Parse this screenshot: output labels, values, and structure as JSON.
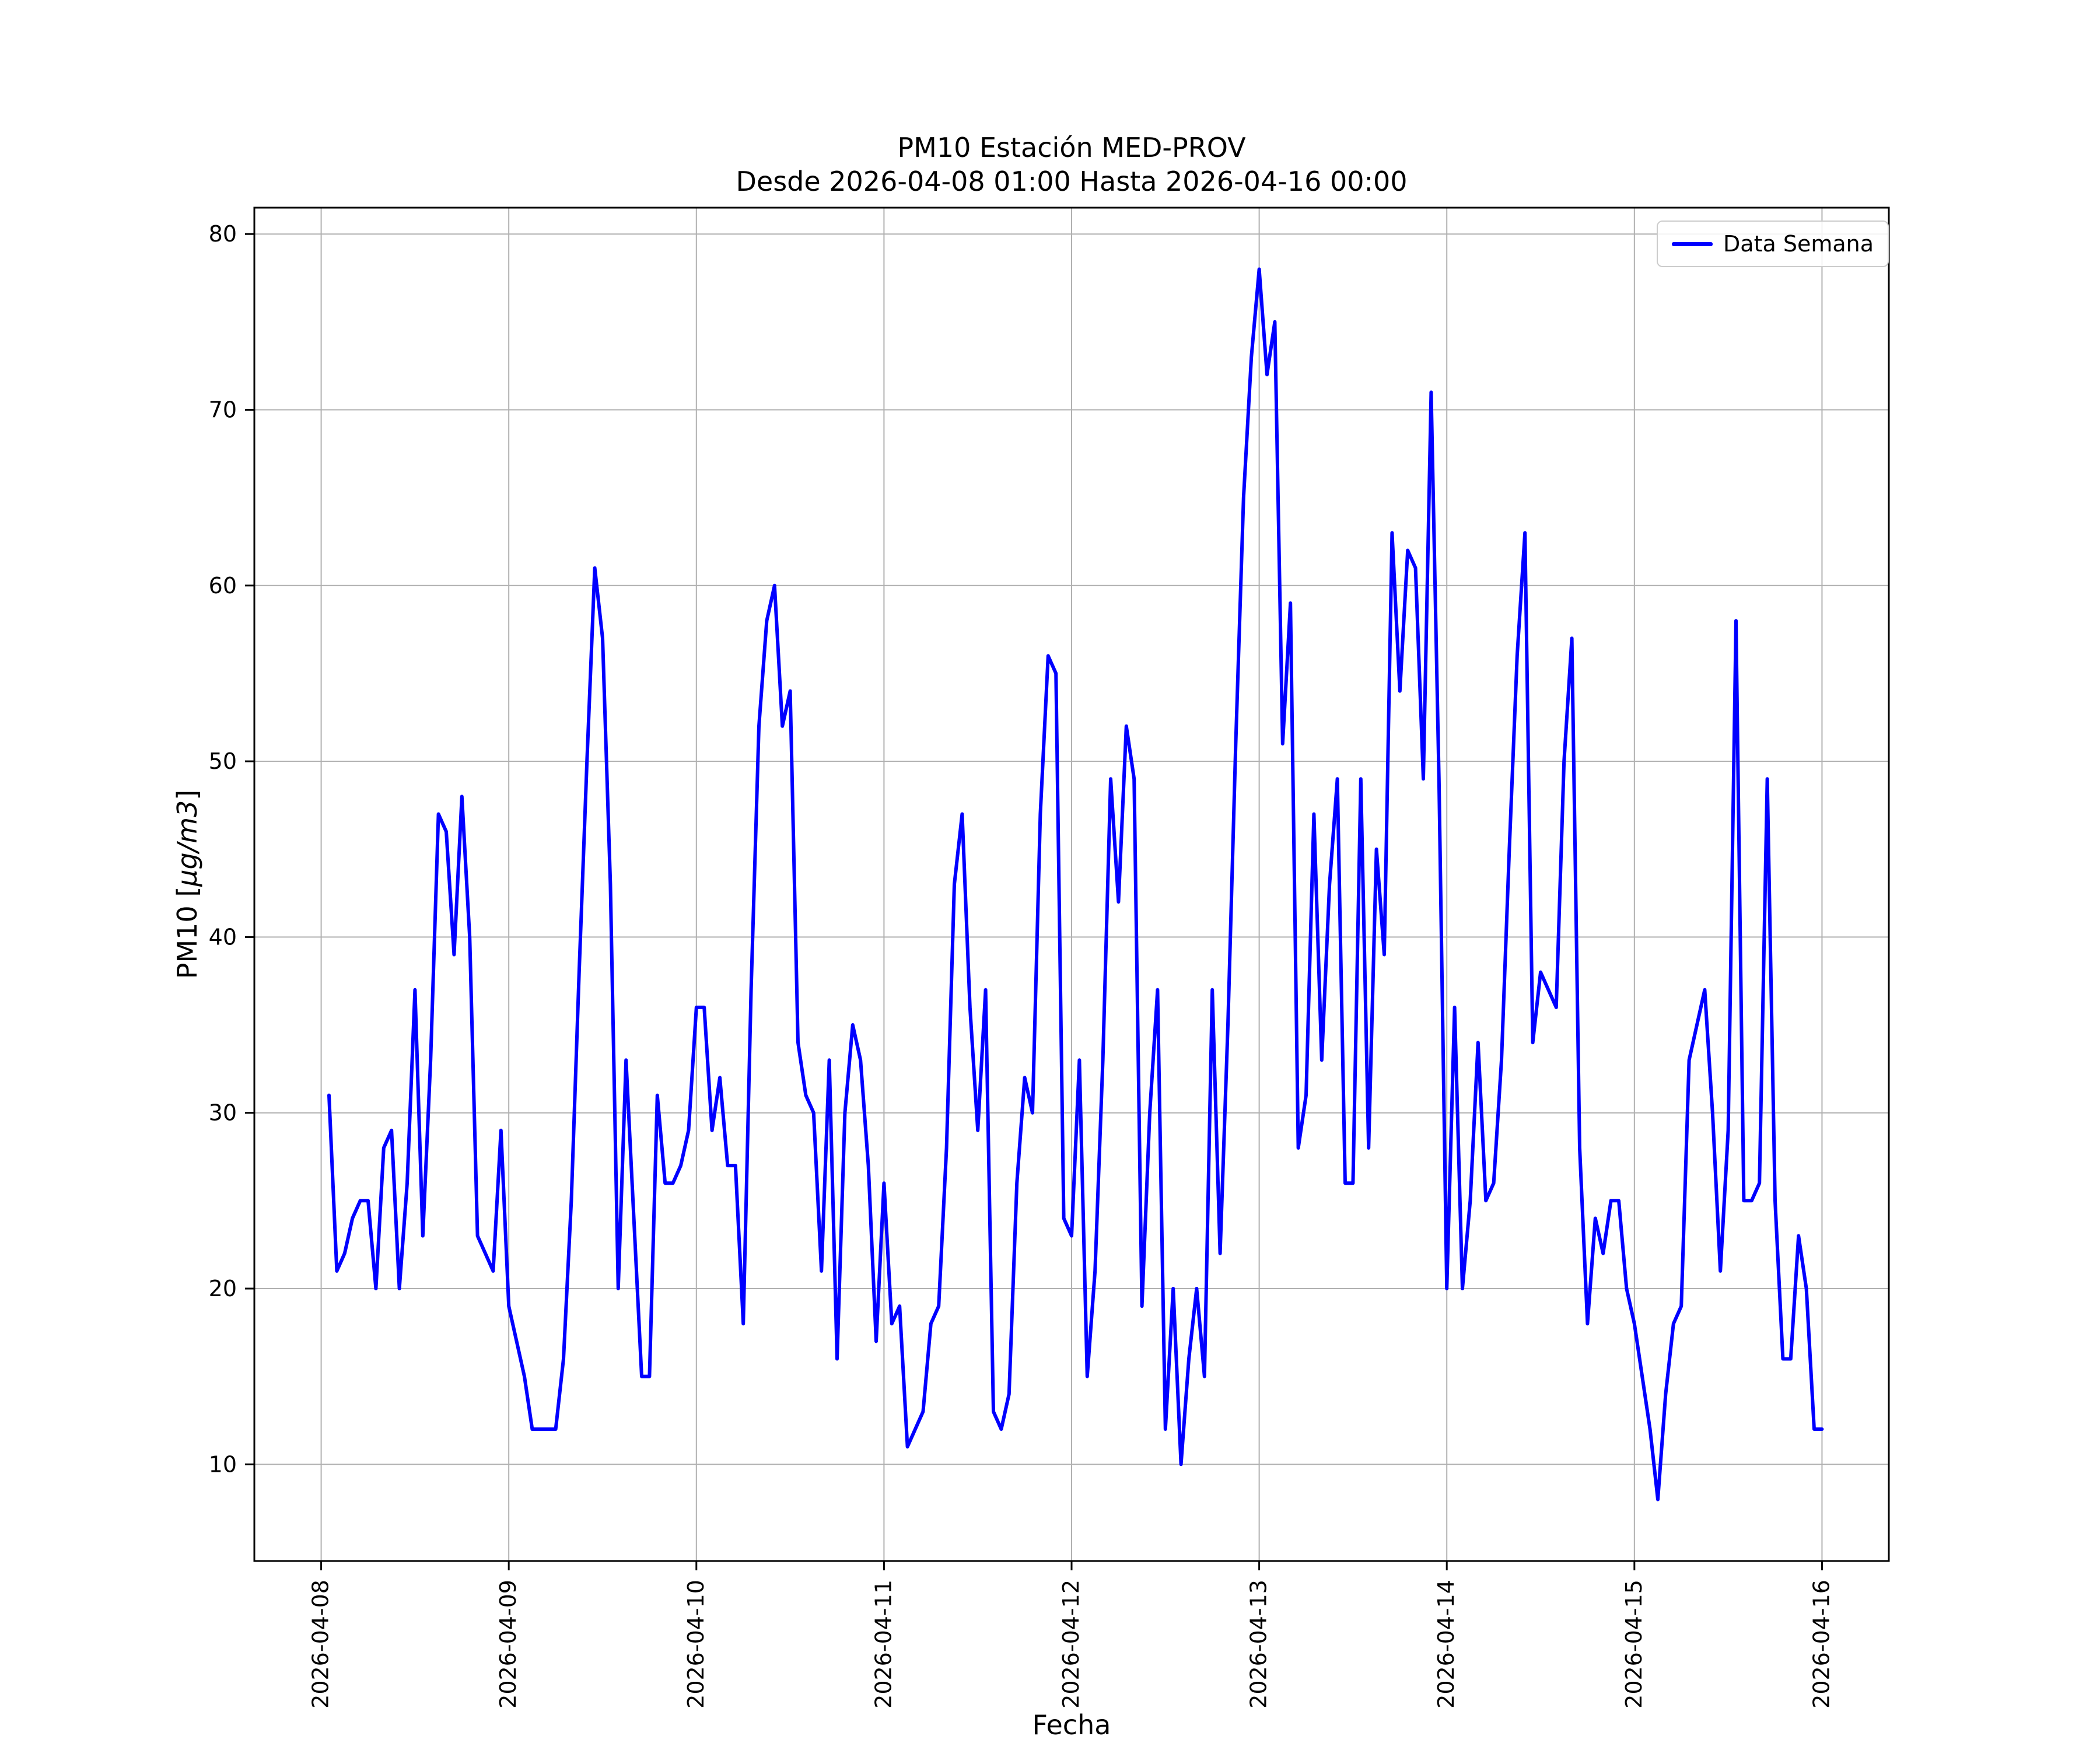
{
  "figure": {
    "title_line1": "PM10 Estación MED-PROV",
    "title_line2": "Desde 2026-04-08 01:00 Hasta 2026-04-16 00:00",
    "xlabel": "Fecha",
    "ylabel_prefix": "PM10 [",
    "ylabel_math": "μg/m3",
    "ylabel_suffix": "]",
    "legend_label": "Data Semana",
    "line_color": "#0000ff",
    "grid_color": "#b0b0b0",
    "frame_color": "#000000",
    "background": "#ffffff"
  },
  "chart_data": {
    "type": "line",
    "title": "PM10 Estación MED-PROV\nDesde 2026-04-08 01:00 Hasta 2026-04-16 00:00",
    "xlabel": "Fecha",
    "ylabel": "PM10 [μg/m3]",
    "legend": [
      "Data Semana"
    ],
    "legend_position": "upper right",
    "grid": true,
    "x_start": "2026-04-08 01:00",
    "x_interval_hours": 1,
    "x_tick_labels": [
      "2026-04-08",
      "2026-04-09",
      "2026-04-10",
      "2026-04-11",
      "2026-04-12",
      "2026-04-13",
      "2026-04-14",
      "2026-04-15",
      "2026-04-16"
    ],
    "y_ticks": [
      10,
      20,
      30,
      40,
      50,
      60,
      70,
      80
    ],
    "ylim": [
      4.5,
      81.5
    ],
    "xlim_hours": [
      -8.55,
      200.55
    ],
    "values": [
      31,
      21,
      22,
      24,
      25,
      25,
      20,
      28,
      29,
      20,
      26,
      37,
      23,
      33,
      47,
      46,
      39,
      48,
      40,
      23,
      22,
      21,
      29,
      19,
      17,
      15,
      12,
      12,
      12,
      12,
      16,
      25,
      38,
      50,
      61,
      57,
      43,
      20,
      33,
      24,
      15,
      15,
      31,
      26,
      26,
      27,
      29,
      36,
      36,
      29,
      32,
      27,
      27,
      18,
      37,
      52,
      58,
      60,
      52,
      54,
      34,
      31,
      30,
      21,
      33,
      16,
      30,
      35,
      33,
      27,
      17,
      26,
      18,
      19,
      11,
      12,
      13,
      18,
      19,
      28,
      43,
      47,
      36,
      29,
      37,
      13,
      12,
      14,
      26,
      32,
      30,
      47,
      56,
      55,
      24,
      23,
      33,
      15,
      21,
      33,
      49,
      42,
      52,
      49,
      19,
      30,
      37,
      12,
      20,
      10,
      16,
      20,
      15,
      37,
      22,
      35,
      51,
      65,
      73,
      78,
      72,
      75,
      51,
      59,
      28,
      31,
      47,
      33,
      43,
      49,
      26,
      26,
      49,
      28,
      45,
      39,
      63,
      54,
      62,
      61,
      49,
      71,
      49,
      20,
      36,
      20,
      25,
      34,
      25,
      26,
      33,
      45,
      56,
      63,
      34,
      38,
      37,
      36,
      50,
      57,
      28,
      18,
      24,
      22,
      25,
      25,
      20,
      18,
      15,
      12,
      8,
      14,
      18,
      19,
      33,
      35,
      37,
      30,
      21,
      29,
      58,
      25,
      25,
      26,
      49,
      25,
      16,
      16,
      23,
      20,
      12,
      12
    ]
  }
}
